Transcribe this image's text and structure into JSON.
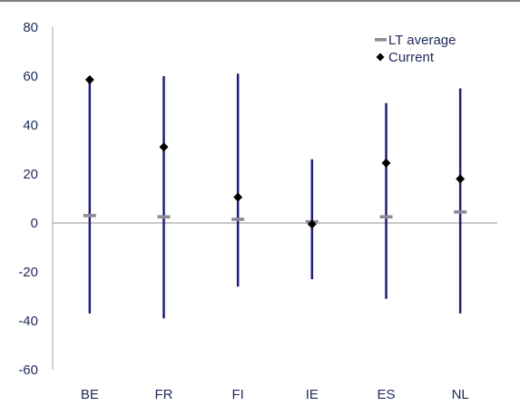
{
  "chart_data": {
    "type": "scatter",
    "categories": [
      "BE",
      "FR",
      "FI",
      "IE",
      "ES",
      "NL"
    ],
    "range_min": [
      -37,
      -39,
      -26,
      -23,
      -31,
      -37
    ],
    "range_max": [
      60,
      60,
      61,
      26,
      49,
      55
    ],
    "series": [
      {
        "name": "LT average",
        "values": [
          3,
          2.5,
          1.5,
          0.5,
          2.5,
          4.5
        ]
      },
      {
        "name": "Current",
        "values": [
          58.5,
          31,
          10.5,
          -0.5,
          24.5,
          18
        ]
      }
    ],
    "ylim": [
      -60,
      80
    ],
    "yticks": [
      -60,
      -40,
      -20,
      0,
      20,
      40,
      60,
      80
    ],
    "legend_position": "top-right",
    "colors": {
      "range": "#1b1f7a",
      "average": "#8c8c96",
      "current": "#000000",
      "zero_line": "#a6a6a6",
      "text": "#1f2a5a"
    }
  }
}
